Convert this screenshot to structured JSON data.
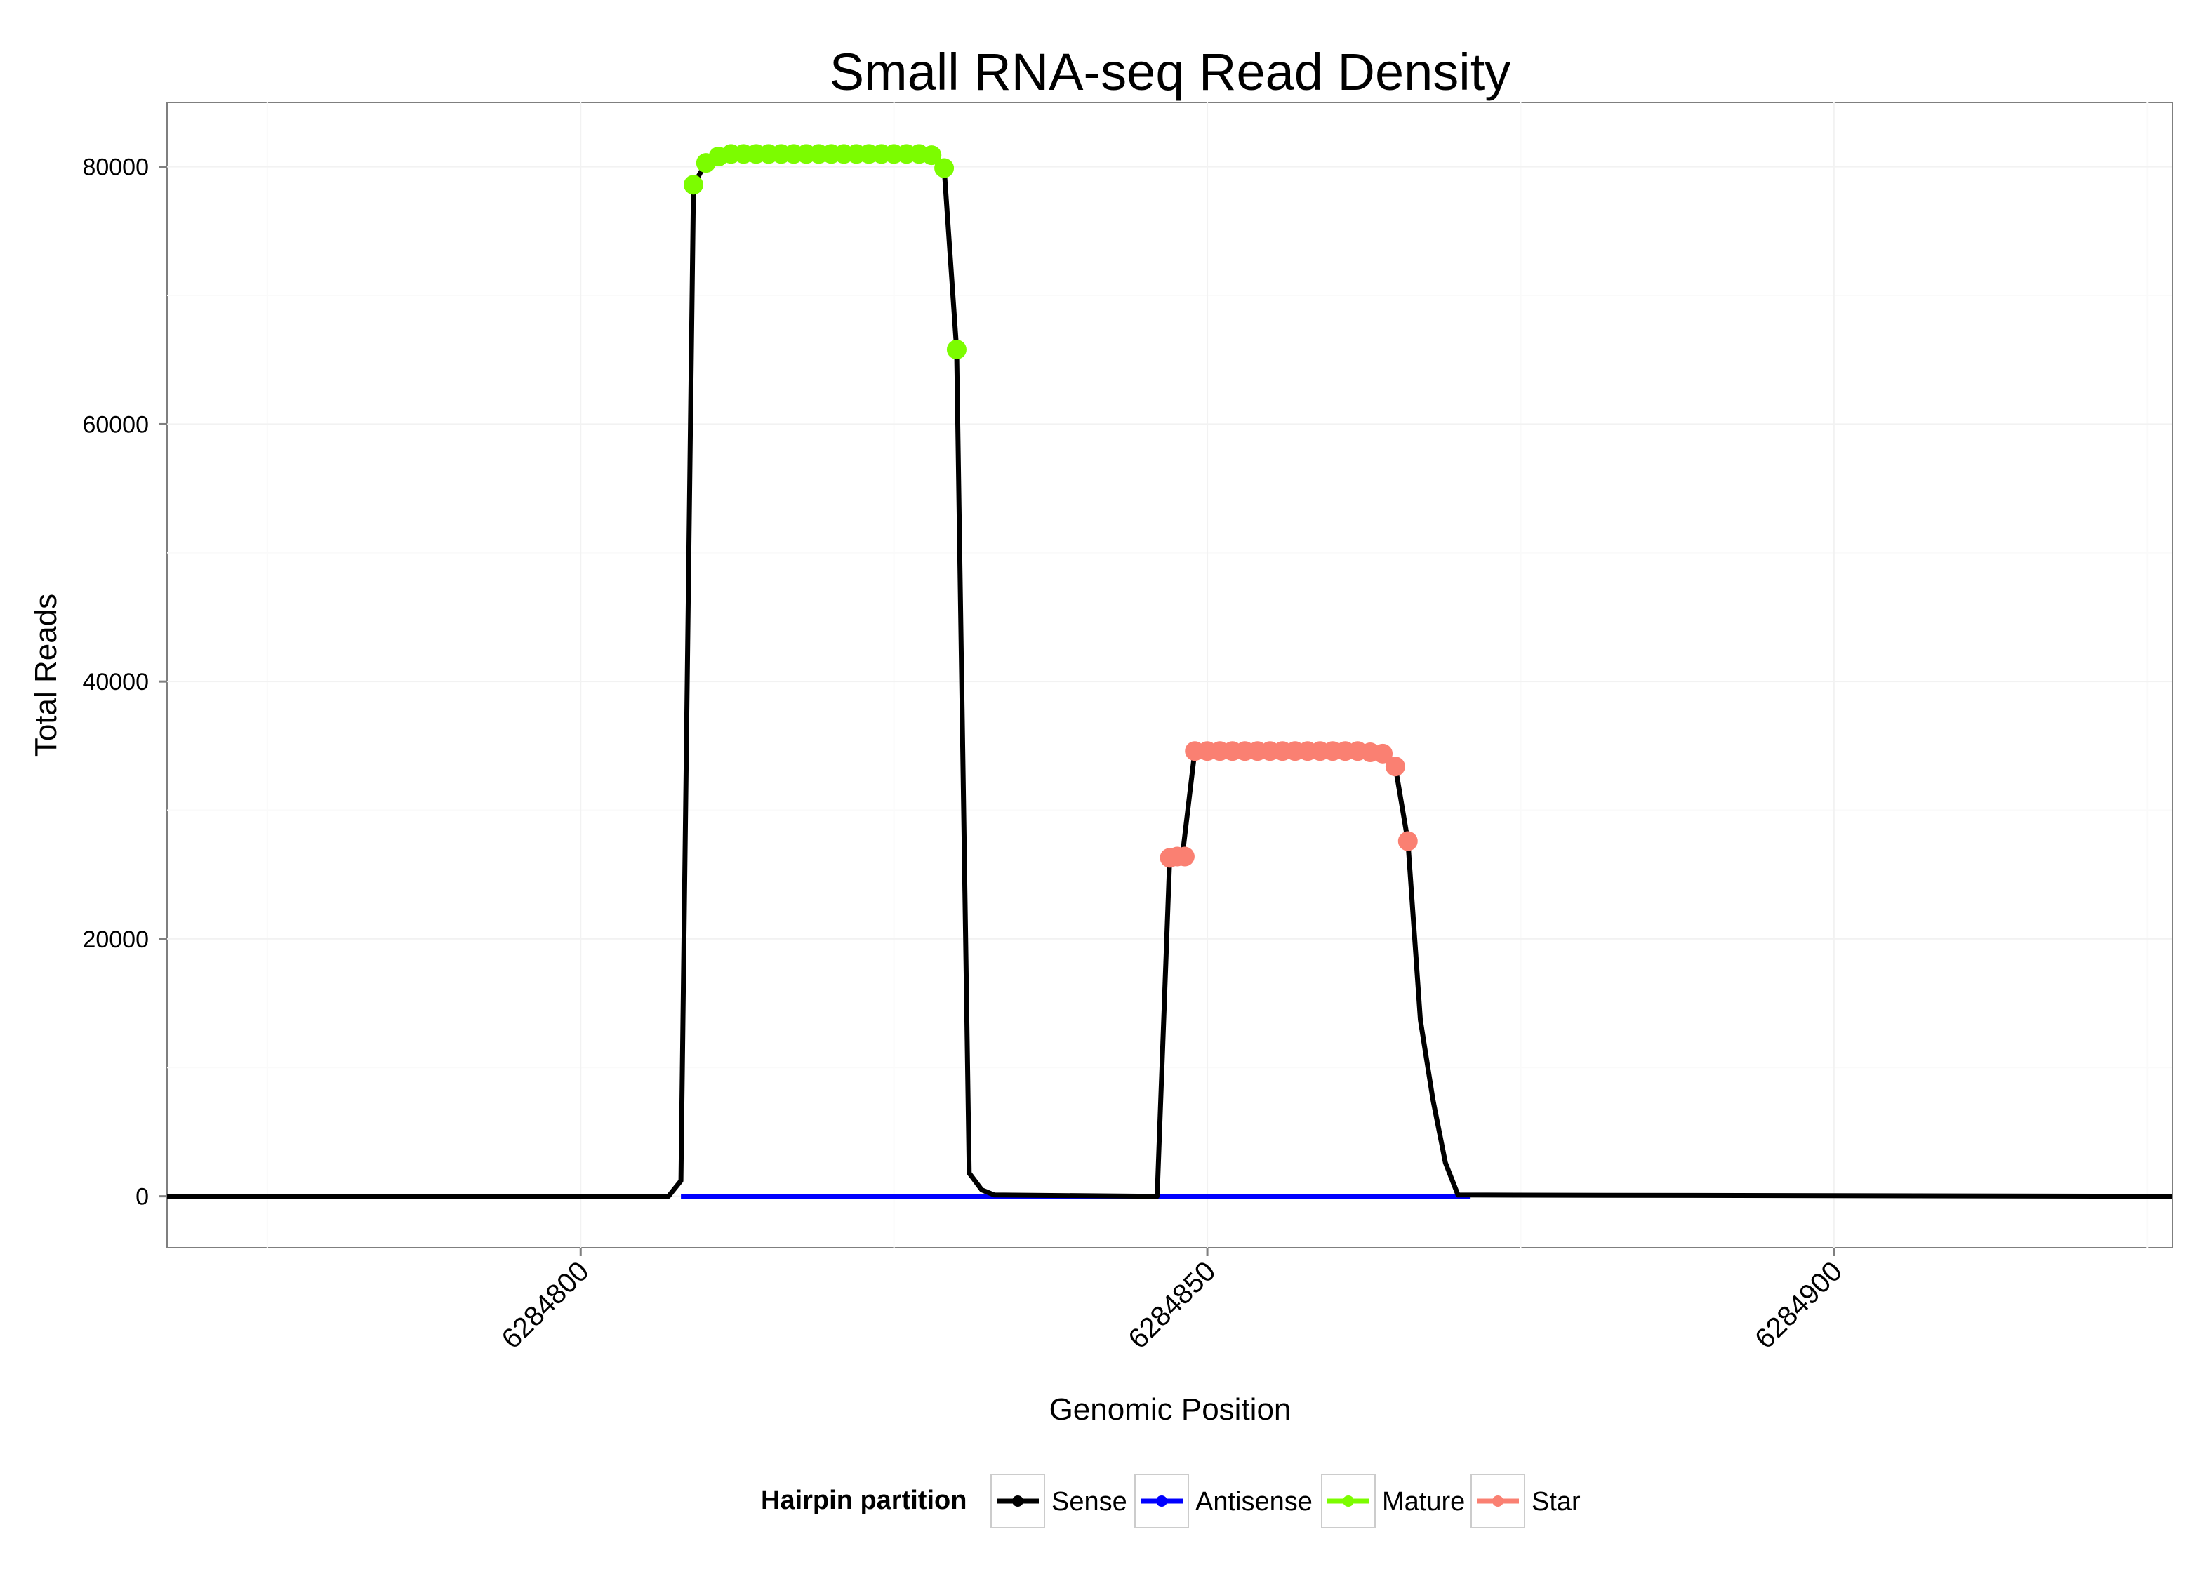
{
  "chart_data": {
    "type": "line",
    "title": "Small RNA-seq Read Density",
    "xlabel": "Genomic Position",
    "ylabel": "Total Reads",
    "xlim": [
      6284767,
      6284927
    ],
    "ylim": [
      -4000,
      85000
    ],
    "x_ticks": [
      6284800,
      6284850,
      6284900
    ],
    "x_tick_labels": [
      "6284800",
      "6284850",
      "6284900"
    ],
    "y_ticks": [
      0,
      20000,
      40000,
      60000,
      80000
    ],
    "y_tick_labels": [
      "0",
      "20000",
      "40000",
      "60000",
      "80000"
    ],
    "grid": true,
    "legend": {
      "title": "Hairpin partition",
      "position": "bottom",
      "items": [
        "Sense",
        "Antisense",
        "Mature",
        "Star"
      ]
    },
    "series": [
      {
        "name": "Sense",
        "color": "#000000",
        "points": [
          [
            6284767,
            0
          ],
          [
            6284807,
            0
          ],
          [
            6284808,
            1200
          ],
          [
            6284809,
            78600
          ],
          [
            6284810,
            80300
          ],
          [
            6284811,
            80800
          ],
          [
            6284812,
            81000
          ],
          [
            6284813,
            81000
          ],
          [
            6284814,
            81000
          ],
          [
            6284815,
            81000
          ],
          [
            6284816,
            81000
          ],
          [
            6284817,
            81000
          ],
          [
            6284818,
            81000
          ],
          [
            6284819,
            81000
          ],
          [
            6284820,
            81000
          ],
          [
            6284821,
            81000
          ],
          [
            6284822,
            81000
          ],
          [
            6284823,
            81000
          ],
          [
            6284824,
            81000
          ],
          [
            6284825,
            81000
          ],
          [
            6284826,
            81000
          ],
          [
            6284827,
            81000
          ],
          [
            6284828,
            80900
          ],
          [
            6284829,
            79900
          ],
          [
            6284830,
            65800
          ],
          [
            6284831,
            1800
          ],
          [
            6284832,
            500
          ],
          [
            6284833,
            100
          ],
          [
            6284846,
            0
          ],
          [
            6284847,
            26300
          ],
          [
            6284848,
            26400
          ],
          [
            6284849,
            34600
          ],
          [
            6284850,
            34600
          ],
          [
            6284851,
            34600
          ],
          [
            6284852,
            34600
          ],
          [
            6284853,
            34600
          ],
          [
            6284854,
            34600
          ],
          [
            6284855,
            34600
          ],
          [
            6284856,
            34600
          ],
          [
            6284857,
            34600
          ],
          [
            6284858,
            34600
          ],
          [
            6284859,
            34600
          ],
          [
            6284860,
            34600
          ],
          [
            6284861,
            34600
          ],
          [
            6284862,
            34600
          ],
          [
            6284863,
            34500
          ],
          [
            6284864,
            34400
          ],
          [
            6284865,
            33400
          ],
          [
            6284866,
            27600
          ],
          [
            6284867,
            13700
          ],
          [
            6284868,
            7500
          ],
          [
            6284869,
            2600
          ],
          [
            6284870,
            100
          ],
          [
            6284927,
            0
          ]
        ]
      },
      {
        "name": "Antisense",
        "color": "#0000ff",
        "points": [
          [
            6284808,
            0
          ],
          [
            6284834,
            0
          ],
          [
            6284847,
            0
          ],
          [
            6284871,
            0
          ]
        ]
      },
      {
        "name": "Mature",
        "color": "#7cfc00",
        "points": [
          [
            6284809,
            78600
          ],
          [
            6284810,
            80300
          ],
          [
            6284811,
            80800
          ],
          [
            6284812,
            81000
          ],
          [
            6284813,
            81000
          ],
          [
            6284814,
            81000
          ],
          [
            6284815,
            81000
          ],
          [
            6284816,
            81000
          ],
          [
            6284817,
            81000
          ],
          [
            6284818,
            81000
          ],
          [
            6284819,
            81000
          ],
          [
            6284820,
            81000
          ],
          [
            6284821,
            81000
          ],
          [
            6284822,
            81000
          ],
          [
            6284823,
            81000
          ],
          [
            6284824,
            81000
          ],
          [
            6284825,
            81000
          ],
          [
            6284826,
            81000
          ],
          [
            6284827,
            81000
          ],
          [
            6284828,
            80900
          ],
          [
            6284829,
            79900
          ],
          [
            6284830,
            65800
          ]
        ]
      },
      {
        "name": "Star",
        "color": "#fa8072",
        "points": [
          [
            6284847,
            26300
          ],
          [
            6284847.6,
            26400
          ],
          [
            6284848.2,
            26400
          ],
          [
            6284849,
            34600
          ],
          [
            6284850,
            34600
          ],
          [
            6284851,
            34600
          ],
          [
            6284852,
            34600
          ],
          [
            6284853,
            34600
          ],
          [
            6284854,
            34600
          ],
          [
            6284855,
            34600
          ],
          [
            6284856,
            34600
          ],
          [
            6284857,
            34600
          ],
          [
            6284858,
            34600
          ],
          [
            6284859,
            34600
          ],
          [
            6284860,
            34600
          ],
          [
            6284861,
            34600
          ],
          [
            6284862,
            34600
          ],
          [
            6284863,
            34500
          ],
          [
            6284864,
            34400
          ],
          [
            6284865,
            33400
          ],
          [
            6284866,
            27600
          ]
        ]
      }
    ]
  }
}
